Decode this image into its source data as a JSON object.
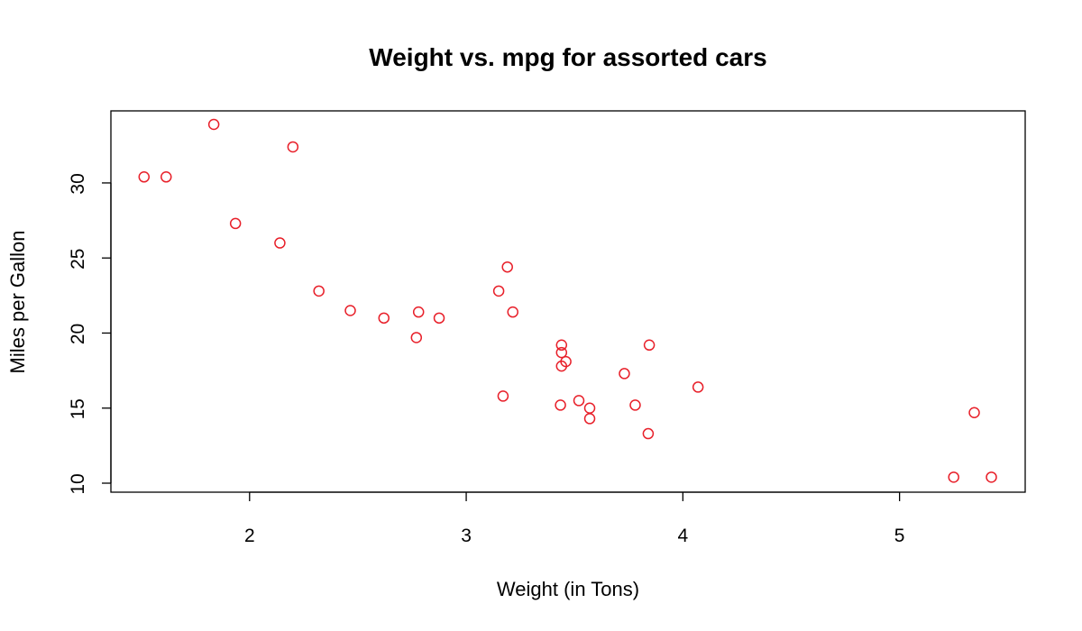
{
  "chart_data": {
    "type": "scatter",
    "title": "Weight vs. mpg for assorted cars",
    "xlabel": "Weight (in Tons)",
    "ylabel": "Miles per Gallon",
    "xlim": [
      1.36,
      5.58
    ],
    "ylim": [
      9.4,
      34.8
    ],
    "x_ticks": [
      2,
      3,
      4,
      5
    ],
    "y_ticks": [
      10,
      15,
      20,
      25,
      30
    ],
    "grid": false,
    "point_color": "#e8202a",
    "series": [
      {
        "x": [
          2.62,
          2.875,
          2.32,
          3.215,
          3.44,
          3.46,
          3.57,
          3.19,
          3.15,
          3.44,
          3.44,
          4.07,
          3.73,
          3.78,
          5.25,
          5.424,
          5.345,
          2.2,
          1.615,
          1.835,
          2.465,
          3.52,
          3.435,
          3.84,
          3.845,
          1.935,
          2.14,
          1.513,
          3.17,
          2.77,
          3.57,
          2.78
        ],
        "y": [
          21.0,
          21.0,
          22.8,
          21.4,
          18.7,
          18.1,
          14.3,
          24.4,
          22.8,
          19.2,
          17.8,
          16.4,
          17.3,
          15.2,
          10.4,
          10.4,
          14.7,
          32.4,
          30.4,
          33.9,
          21.5,
          15.5,
          15.2,
          13.3,
          19.2,
          27.3,
          26.0,
          30.4,
          15.8,
          19.7,
          15.0,
          21.4
        ]
      }
    ]
  }
}
